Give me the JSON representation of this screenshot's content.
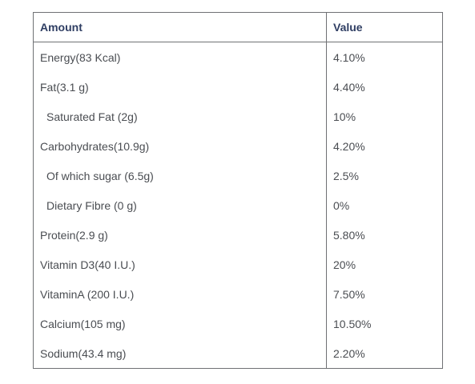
{
  "table": {
    "headers": {
      "amount": "Amount",
      "value": "Value"
    },
    "rows": [
      {
        "amount": "Energy(83 Kcal)",
        "value": "4.10%"
      },
      {
        "amount": "Fat(3.1 g)",
        "value": "4.40%"
      },
      {
        "amount": "Saturated Fat (2g)",
        "value": "10%"
      },
      {
        "amount": "Carbohydrates(10.9g)",
        "value": "4.20%"
      },
      {
        "amount": "Of which sugar (6.5g)",
        "value": "2.5%"
      },
      {
        "amount": "Dietary Fibre (0 g)",
        "value": "0%"
      },
      {
        "amount": "Protein(2.9 g)",
        "value": "5.80%"
      },
      {
        "amount": "Vitamin D3(40 I.U.)",
        "value": "20%"
      },
      {
        "amount": "VitaminA (200 I.U.)",
        "value": "7.50%"
      },
      {
        "amount": "Calcium(105 mg)",
        "value": "10.50%"
      },
      {
        "amount": "Sodium(43.4 mg)",
        "value": "2.20%"
      }
    ]
  },
  "colors": {
    "header_text": "#2f3e63",
    "body_text": "#4a4d52",
    "border": "#6f7174",
    "background": "#ffffff"
  }
}
